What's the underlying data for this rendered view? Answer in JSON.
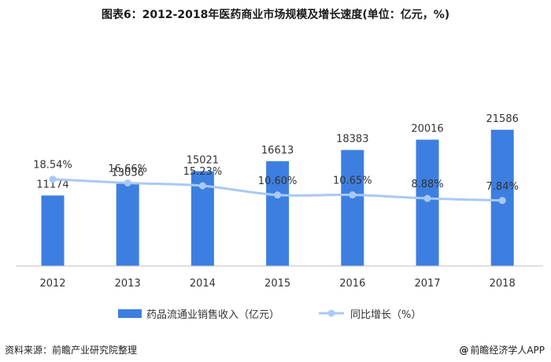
{
  "title": "图表6：2012-2018年医药商业市场规模及增长速度(单位：亿元，%)",
  "footer": {
    "source": "资料来源：前瞻产业研究院整理",
    "brand_logo": "@",
    "brand": "前瞻经济学人APP"
  },
  "colors": {
    "bar": "#3d7fe0",
    "line": "#a9c9f5",
    "text": "#333333"
  },
  "chart_data": {
    "type": "bar",
    "categories": [
      "2012",
      "2013",
      "2014",
      "2015",
      "2016",
      "2017",
      "2018"
    ],
    "series": [
      {
        "name": "药品流通业销售收入（亿元）",
        "type": "bar",
        "axis": "left",
        "values": [
          11174,
          13036,
          15021,
          16613,
          18383,
          20016,
          21586
        ]
      },
      {
        "name": "同比增长（%）",
        "type": "line",
        "axis": "right",
        "smooth": true,
        "values": [
          18.54,
          16.66,
          15.23,
          10.6,
          10.65,
          8.88,
          7.84
        ]
      }
    ],
    "bar_labels": [
      "11174",
      "13036",
      "15021",
      "16613",
      "18383",
      "20016",
      "21586"
    ],
    "line_labels": [
      "18.54%",
      "16.66%",
      "15.23%",
      "10.60%",
      "10.65%",
      "8.88%",
      "7.84%"
    ],
    "legend_position": "bottom",
    "grid": false
  }
}
